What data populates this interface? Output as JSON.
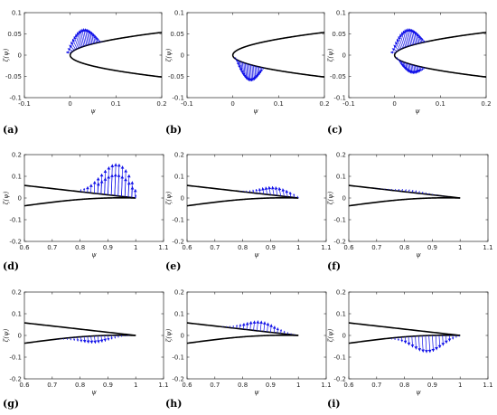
{
  "colors": {
    "airfoil": "#000000",
    "vectors": "#1010e8",
    "axes": "#262626"
  },
  "chart_data": [
    {
      "id": "a",
      "panel_label": "(a)",
      "type": "quiver",
      "xlim": [
        -0.1,
        0.2
      ],
      "ylim": [
        -0.1,
        0.1
      ],
      "xticks": [
        "-0.1",
        "0",
        "0.1",
        "0.2"
      ],
      "yticks": [
        "0.1",
        "0.05",
        "0",
        "-0.05",
        "-0.1"
      ],
      "xlabel": "ψ",
      "ylabel": "ζ(ψ)",
      "region": "leading-edge",
      "vectors_on": "upper",
      "max_magnitude": 0.045,
      "flip": false
    },
    {
      "id": "b",
      "panel_label": "(b)",
      "type": "quiver",
      "xlim": [
        -0.1,
        0.2
      ],
      "ylim": [
        -0.1,
        0.1
      ],
      "xticks": [
        "-0.1",
        "0",
        "0.1",
        "0.2"
      ],
      "yticks": [
        "0.1",
        "0.05",
        "0",
        "-0.05",
        "-0.1"
      ],
      "xlabel": "ψ",
      "ylabel": "ζ(ψ)",
      "region": "leading-edge",
      "vectors_on": "lower",
      "max_magnitude": 0.045,
      "flip": false
    },
    {
      "id": "c",
      "panel_label": "(c)",
      "type": "quiver",
      "xlim": [
        -0.1,
        0.2
      ],
      "ylim": [
        -0.1,
        0.1
      ],
      "xticks": [
        "-0.1",
        "0",
        "0.1",
        "0.2"
      ],
      "yticks": [
        "0.1",
        "0.05",
        "0",
        "-0.05",
        "-0.1"
      ],
      "xlabel": "ψ",
      "ylabel": "ζ(ψ)",
      "region": "leading-edge",
      "vectors_on": "both",
      "max_magnitude": 0.045,
      "flip": false
    },
    {
      "id": "d",
      "panel_label": "(d)",
      "type": "quiver",
      "xlim": [
        0.6,
        1.1
      ],
      "ylim": [
        -0.2,
        0.2
      ],
      "xticks": [
        "0.6",
        "0.7",
        "0.8",
        "0.9",
        "1",
        "1.1"
      ],
      "yticks": [
        "0.2",
        "0.1",
        "0",
        "-0.1",
        "-0.2"
      ],
      "xlabel": "ψ",
      "ylabel": "ζ(ψ)",
      "region": "trailing-edge",
      "vectors_on": "upper",
      "max_magnitude": 0.15,
      "peak_x": 0.93,
      "flip": false
    },
    {
      "id": "e",
      "panel_label": "(e)",
      "type": "quiver",
      "xlim": [
        0.6,
        1.1
      ],
      "ylim": [
        -0.2,
        0.2
      ],
      "xticks": [
        "0.6",
        "0.7",
        "0.8",
        "0.9",
        "1",
        "1.1"
      ],
      "yticks": [
        "0.2",
        "0.1",
        "0",
        "-0.1",
        "-0.2"
      ],
      "xlabel": "ψ",
      "ylabel": "ζ(ψ)",
      "region": "trailing-edge",
      "vectors_on": "upper",
      "max_magnitude": 0.042,
      "peak_x": 0.92,
      "flip": true
    },
    {
      "id": "f",
      "panel_label": "(f)",
      "type": "quiver",
      "xlim": [
        0.6,
        1.1
      ],
      "ylim": [
        -0.2,
        0.2
      ],
      "xticks": [
        "0.6",
        "0.7",
        "0.8",
        "0.9",
        "1",
        "1.1"
      ],
      "yticks": [
        "0.2",
        "0.1",
        "0",
        "-0.1",
        "-0.2"
      ],
      "xlabel": "ψ",
      "ylabel": "ζ(ψ)",
      "region": "trailing-edge",
      "vectors_on": "upper",
      "max_magnitude": 0.012,
      "peak_x": 0.82,
      "flip": false
    },
    {
      "id": "g",
      "panel_label": "(g)",
      "type": "quiver",
      "xlim": [
        0.6,
        1.1
      ],
      "ylim": [
        -0.2,
        0.2
      ],
      "xticks": [
        "0.6",
        "0.7",
        "0.8",
        "0.9",
        "1",
        "1.1"
      ],
      "yticks": [
        "0.2",
        "0.1",
        "0",
        "-0.1",
        "-0.2"
      ],
      "xlabel": "ψ",
      "ylabel": "ζ(ψ)",
      "region": "trailing-edge",
      "vectors_on": "lower",
      "max_magnitude": 0.035,
      "peak_x": 0.85,
      "flip": false
    },
    {
      "id": "h",
      "panel_label": "(h)",
      "type": "quiver",
      "xlim": [
        0.6,
        1.1
      ],
      "ylim": [
        -0.2,
        0.2
      ],
      "xticks": [
        "0.6",
        "0.7",
        "0.8",
        "0.9",
        "1",
        "1.1"
      ],
      "yticks": [
        "0.2",
        "0.1",
        "0",
        "-0.1",
        "-0.2"
      ],
      "xlabel": "ψ",
      "ylabel": "ζ(ψ)",
      "region": "trailing-edge",
      "vectors_on": "upper",
      "max_magnitude": 0.048,
      "peak_x": 0.86,
      "flip": false
    },
    {
      "id": "i",
      "panel_label": "(i)",
      "type": "quiver",
      "xlim": [
        0.6,
        1.1
      ],
      "ylim": [
        -0.2,
        0.2
      ],
      "xticks": [
        "0.6",
        "0.7",
        "0.8",
        "0.9",
        "1",
        "1.1"
      ],
      "yticks": [
        "0.2",
        "0.1",
        "0",
        "-0.1",
        "-0.2"
      ],
      "xlabel": "ψ",
      "ylabel": "ζ(ψ)",
      "region": "trailing-edge",
      "vectors_on": "lower",
      "max_magnitude": 0.08,
      "peak_x": 0.88,
      "flip": false
    }
  ]
}
